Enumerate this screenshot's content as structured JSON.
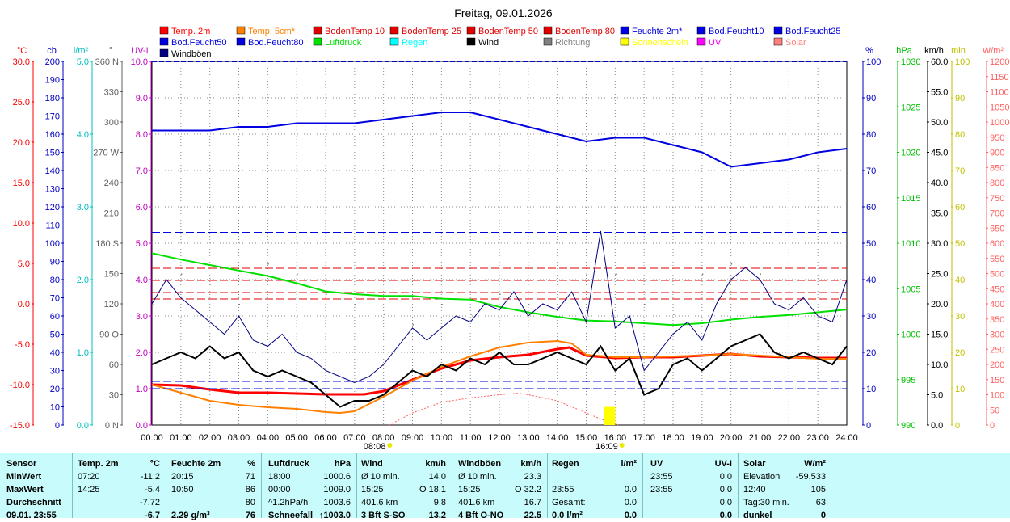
{
  "chart_data": {
    "type": "line",
    "title": "Freitag, 09.01.2026",
    "x_ticks": [
      "00:00",
      "01:00",
      "02:00",
      "03:00",
      "04:00",
      "05:00",
      "06:00",
      "07:00",
      "08:00",
      "09:00",
      "10:00",
      "11:00",
      "12:00",
      "13:00",
      "14:00",
      "15:00",
      "16:00",
      "17:00",
      "18:00",
      "19:00",
      "20:00",
      "21:00",
      "22:00",
      "23:00",
      "24:00"
    ],
    "sunrise": "08:08",
    "sunset": "16:09",
    "legend": [
      {
        "label": "Temp. 2m",
        "color": "#ff0000"
      },
      {
        "label": "Temp. 5cm*",
        "color": "#ff8000"
      },
      {
        "label": "BodenTemp 10",
        "color": "#e00000"
      },
      {
        "label": "BodenTemp 25",
        "color": "#e00000"
      },
      {
        "label": "BodenTemp 50",
        "color": "#e00000"
      },
      {
        "label": "BodenTemp 80",
        "color": "#e00000"
      },
      {
        "label": "Feuchte 2m*",
        "color": "#0000e0"
      },
      {
        "label": "Bod.Feucht10",
        "color": "#0000e0"
      },
      {
        "label": "Bod.Feucht25",
        "color": "#0000e0"
      },
      {
        "label": "Bod.Feucht50",
        "color": "#0000e0"
      },
      {
        "label": "Bod.Feucht80",
        "color": "#0000e0"
      },
      {
        "label": "Luftdruck",
        "color": "#00e000"
      },
      {
        "label": "Regen",
        "color": "#00ffff"
      },
      {
        "label": "Wind",
        "color": "#000000"
      },
      {
        "label": "Richtung",
        "color": "#808080"
      },
      {
        "label": "Sonnenschein",
        "color": "#ffff00"
      },
      {
        "label": "UV",
        "color": "#ff00ff"
      },
      {
        "label": "Solar",
        "color": "#ff8080"
      },
      {
        "label": "Windböen",
        "color": "#000080"
      }
    ],
    "axes": [
      {
        "unit": "°C",
        "color": "#ff0000",
        "ticks": [
          "30.0",
          "25.0",
          "20.0",
          "15.0",
          "10.0",
          "5.0",
          "0.0",
          "-5.0",
          "-10.0",
          "-15.0"
        ],
        "range": [
          -15,
          30
        ]
      },
      {
        "unit": "cb",
        "color": "#0000c0",
        "ticks": [
          "200",
          "190",
          "180",
          "170",
          "160",
          "150",
          "140",
          "130",
          "120",
          "110",
          "100",
          "90",
          "80",
          "70",
          "60",
          "50",
          "40",
          "30",
          "20",
          "10",
          "0"
        ],
        "range": [
          0,
          200
        ]
      },
      {
        "unit": "l/m²",
        "color": "#00c0c0",
        "ticks": [
          "5.0",
          "4.0",
          "3.0",
          "2.0",
          "1.0",
          "0.0"
        ],
        "range": [
          0,
          5
        ]
      },
      {
        "unit": "°",
        "color": "#606060",
        "ticks": [
          "360 N",
          "330",
          "300",
          "270 W",
          "240",
          "210",
          "180 S",
          "150",
          "120",
          "90 O",
          "60",
          "30",
          "0 N"
        ],
        "range": [
          0,
          360
        ]
      },
      {
        "unit": "UV-I",
        "color": "#c000c0",
        "ticks": [
          "10.0",
          "9.0",
          "8.0",
          "7.0",
          "6.0",
          "5.0",
          "4.0",
          "3.0",
          "2.0",
          "1.0",
          "0.0"
        ],
        "range": [
          0,
          10
        ]
      },
      {
        "unit": "%",
        "color": "#0000c0",
        "ticks": [
          "100",
          "90",
          "80",
          "70",
          "60",
          "50",
          "40",
          "30",
          "20",
          "10",
          "0"
        ],
        "range": [
          0,
          100
        ]
      },
      {
        "unit": "hPa",
        "color": "#00c000",
        "ticks": [
          "1030",
          "1025",
          "1020",
          "1015",
          "1010",
          "1005",
          "1000",
          "995",
          "990"
        ],
        "range": [
          990,
          1030
        ]
      },
      {
        "unit": "km/h",
        "color": "#000000",
        "ticks": [
          "60.0",
          "55.0",
          "50.0",
          "45.0",
          "40.0",
          "35.0",
          "30.0",
          "25.0",
          "20.0",
          "15.0",
          "10.0",
          "5.0",
          "0.0"
        ],
        "range": [
          0,
          60
        ]
      },
      {
        "unit": "min",
        "color": "#c0c000",
        "ticks": [
          "100",
          "90",
          "80",
          "70",
          "60",
          "50",
          "40",
          "30",
          "20",
          "10",
          "0"
        ],
        "range": [
          0,
          100
        ]
      },
      {
        "unit": "W/m²",
        "color": "#ff6060",
        "ticks": [
          "1200",
          "1150",
          "1100",
          "1050",
          "1000",
          "950",
          "900",
          "850",
          "800",
          "750",
          "700",
          "650",
          "600",
          "550",
          "500",
          "450",
          "400",
          "350",
          "300",
          "250",
          "200",
          "150",
          "100",
          "50",
          "0"
        ],
        "range": [
          0,
          1200
        ]
      }
    ],
    "series": [
      {
        "name": "Temp. 2m",
        "color": "#ff0000",
        "unit": "°C",
        "x": [
          0,
          1,
          2,
          3,
          4,
          5,
          6,
          7,
          7.33,
          8,
          9,
          10,
          11,
          12,
          13,
          14,
          14.42,
          15,
          16,
          17,
          18,
          19,
          20,
          21,
          22,
          23,
          24
        ],
        "y": [
          -10.0,
          -10.1,
          -10.6,
          -11.0,
          -11.0,
          -11.1,
          -11.2,
          -11.2,
          -11.2,
          -10.8,
          -9.4,
          -8.0,
          -7.0,
          -6.6,
          -6.3,
          -5.6,
          -5.4,
          -6.4,
          -6.7,
          -6.6,
          -6.6,
          -6.4,
          -6.2,
          -6.5,
          -6.6,
          -6.7,
          -6.7
        ]
      },
      {
        "name": "Temp. 5cm*",
        "color": "#ff8000",
        "unit": "°C",
        "x": [
          0,
          1,
          2,
          3,
          4,
          5,
          6,
          6.5,
          7,
          8,
          9,
          10,
          11,
          12,
          13,
          14,
          14.5,
          15,
          16,
          17,
          18,
          19,
          20,
          21,
          22,
          23,
          24
        ],
        "y": [
          -10.0,
          -11.0,
          -12.0,
          -12.5,
          -12.8,
          -13.0,
          -13.4,
          -13.5,
          -13.3,
          -11.5,
          -9.5,
          -7.8,
          -6.5,
          -5.4,
          -4.8,
          -4.6,
          -4.9,
          -6.3,
          -6.6,
          -6.6,
          -6.5,
          -6.4,
          -6.2,
          -6.4,
          -6.6,
          -6.8,
          -6.8
        ]
      },
      {
        "name": "Feuchte 2m*",
        "color": "#0000e0",
        "unit": "%",
        "x": [
          0,
          1,
          2,
          3,
          4,
          5,
          6,
          7,
          8,
          9,
          10,
          11,
          12,
          13,
          14,
          15,
          16,
          17,
          18,
          19,
          20,
          21,
          22,
          23,
          24
        ],
        "y": [
          81,
          81,
          81,
          82,
          82,
          83,
          83,
          83,
          84,
          85,
          86,
          86,
          84,
          82,
          80,
          78,
          79,
          79,
          77,
          75,
          71,
          72,
          73,
          75,
          76
        ]
      },
      {
        "name": "Bod.Feucht10",
        "color": "#0000e0",
        "unit": "%",
        "x": [
          0,
          24
        ],
        "y": [
          53,
          53
        ]
      },
      {
        "name": "Bod.Feucht25",
        "color": "#0000e0",
        "unit": "%",
        "x": [
          0,
          24
        ],
        "y": [
          33,
          33
        ]
      },
      {
        "name": "Bod.Feucht50",
        "color": "#0000e0",
        "unit": "%",
        "x": [
          0,
          24
        ],
        "y": [
          12,
          12
        ]
      },
      {
        "name": "Bod.Feucht80",
        "color": "#0000e0",
        "unit": "%",
        "x": [
          0,
          24
        ],
        "y": [
          10,
          10
        ]
      },
      {
        "name": "BodenTemp 10",
        "color": "#e00000",
        "unit": "°C",
        "x": [
          0,
          24
        ],
        "y": [
          4.4,
          4.4
        ]
      },
      {
        "name": "BodenTemp 25",
        "color": "#e00000",
        "unit": "°C",
        "x": [
          0,
          24
        ],
        "y": [
          2.9,
          2.9
        ]
      },
      {
        "name": "BodenTemp 50",
        "color": "#e00000",
        "unit": "°C",
        "x": [
          0,
          24
        ],
        "y": [
          1.4,
          1.4
        ]
      },
      {
        "name": "BodenTemp 80",
        "color": "#e00000",
        "unit": "°C",
        "x": [
          0,
          24
        ],
        "y": [
          0.6,
          0.6
        ]
      },
      {
        "name": "Luftdruck",
        "color": "#00e000",
        "unit": "hPa",
        "x": [
          0,
          1,
          2,
          3,
          4,
          5,
          6,
          7,
          8,
          9,
          10,
          11,
          12,
          13,
          14,
          15,
          16,
          17,
          18,
          19,
          20,
          21,
          22,
          23,
          24
        ],
        "y": [
          1008.9,
          1008.2,
          1007.6,
          1007.0,
          1006.4,
          1005.6,
          1004.7,
          1004.4,
          1004.2,
          1004.2,
          1003.9,
          1003.8,
          1003.0,
          1002.4,
          1001.9,
          1001.5,
          1001.4,
          1001.2,
          1001.0,
          1001.2,
          1001.6,
          1001.9,
          1002.1,
          1002.4,
          1002.7
        ]
      },
      {
        "name": "Wind",
        "color": "#000000",
        "unit": "km/h",
        "x": [
          0,
          0.5,
          1,
          1.5,
          2,
          2.5,
          3,
          3.5,
          4,
          4.5,
          5,
          5.5,
          6,
          6.5,
          7,
          7.5,
          8,
          8.5,
          9,
          9.5,
          10,
          10.5,
          11,
          11.5,
          12,
          12.5,
          13,
          13.5,
          14,
          14.5,
          15,
          15.5,
          16,
          16.5,
          17,
          17.5,
          18,
          18.5,
          19,
          19.5,
          20,
          20.5,
          21,
          21.5,
          22,
          22.5,
          23,
          23.5,
          24
        ],
        "y": [
          10,
          11,
          12,
          11,
          13,
          11,
          12,
          9,
          8,
          9,
          8,
          7,
          5,
          3,
          4,
          4,
          5,
          7,
          9,
          8,
          10,
          9,
          11,
          10,
          12,
          10,
          10,
          11,
          12,
          11,
          10,
          13,
          9,
          11,
          5,
          6,
          10,
          11,
          9,
          11,
          13,
          14,
          15,
          12,
          11,
          12,
          11,
          10,
          13
        ]
      },
      {
        "name": "Windböen",
        "color": "#000080",
        "unit": "km/h",
        "x": [
          0,
          0.5,
          1,
          1.5,
          2,
          2.5,
          3,
          3.5,
          4,
          4.5,
          5,
          5.5,
          6,
          6.5,
          7,
          7.5,
          8,
          8.5,
          9,
          9.5,
          10,
          10.5,
          11,
          11.5,
          12,
          12.5,
          13,
          13.5,
          14,
          14.5,
          15,
          15.5,
          16,
          16.5,
          17,
          17.5,
          18,
          18.5,
          19,
          19.5,
          20,
          20.5,
          21,
          21.5,
          22,
          22.5,
          23,
          23.5,
          24
        ],
        "y": [
          20,
          24,
          21,
          19,
          17,
          15,
          18,
          14,
          13,
          15,
          12,
          11,
          9,
          8,
          7,
          8,
          10,
          13,
          16,
          14,
          16,
          18,
          17,
          20,
          19,
          22,
          18,
          20,
          19,
          22,
          17,
          32,
          16,
          18,
          9,
          12,
          15,
          17,
          14,
          20,
          24,
          26,
          24,
          20,
          19,
          21,
          18,
          17,
          24
        ]
      },
      {
        "name": "Richtung",
        "color": "#808080",
        "unit": "°",
        "x": [
          0,
          1,
          2,
          3,
          4,
          5,
          6,
          7,
          8,
          9,
          10,
          11,
          12,
          13,
          14,
          15,
          16,
          17,
          18,
          19,
          20,
          21,
          22,
          23,
          24
        ],
        "y": [
          120,
          150,
          140,
          120,
          160,
          150,
          130,
          120,
          110,
          100,
          120,
          110,
          130,
          120,
          140,
          150,
          150,
          120,
          110,
          150,
          160,
          150,
          120,
          140,
          130
        ]
      },
      {
        "name": "Solar",
        "color": "#ff6060",
        "unit": "W/m²",
        "x": [
          8.2,
          9,
          10,
          11,
          12,
          12.67,
          13,
          14,
          15,
          15.5,
          16.1
        ],
        "y": [
          0,
          40,
          75,
          90,
          100,
          105,
          100,
          80,
          40,
          20,
          0
        ]
      },
      {
        "name": "Sonnenschein",
        "color": "#ffff00",
        "unit": "min",
        "x": [
          15.6,
          16.0
        ],
        "y": [
          3,
          3
        ]
      }
    ]
  },
  "table": {
    "headers": [
      "Sensor",
      "Temp. 2m",
      "°C",
      "Feuchte 2m",
      "%",
      "Luftdruck",
      "hPa",
      "Wind",
      "km/h",
      "Windböen",
      "km/h",
      "Regen",
      "l/m²",
      "UV",
      "UV-I",
      "Solar",
      "W/m²"
    ],
    "rows": [
      [
        "MinWert",
        "07:20",
        "-11.2",
        "20:15",
        "71",
        "18:00",
        "1000.6",
        "Ø 10 min.",
        "14.0",
        "Ø 10 min.",
        "23.3",
        "",
        "",
        "23:55",
        "0.0",
        "Elevation",
        "-59.533"
      ],
      [
        "MaxWert",
        "14:25",
        "-5.4",
        "10:50",
        "86",
        "00:00",
        "1009.0",
        "15:25",
        "O 18.1",
        "15:25",
        "O 32.2",
        "23:55",
        "0.0",
        "23:55",
        "0.0",
        "12:40",
        "105"
      ],
      [
        "Durchschnitt",
        "",
        "-7.72",
        "",
        "80",
        "^1.2hPa/h",
        "1003.6",
        "401.6 km",
        "9.8",
        "401.6 km",
        "16.7",
        "Gesamt:",
        "0.0",
        "",
        "0.0",
        "Tag:30 min.",
        "63"
      ],
      [
        "09.01. 23:55",
        "",
        "-6.7",
        "2.29 g/m³",
        "76",
        "Schneefall",
        "↑1003.0",
        "3 Bft S-SO",
        "13.2",
        "4 Bft O-NO",
        "22.5",
        "0.0 l/m²",
        "0.0",
        "",
        "0.0",
        "dunkel",
        "0"
      ]
    ]
  }
}
